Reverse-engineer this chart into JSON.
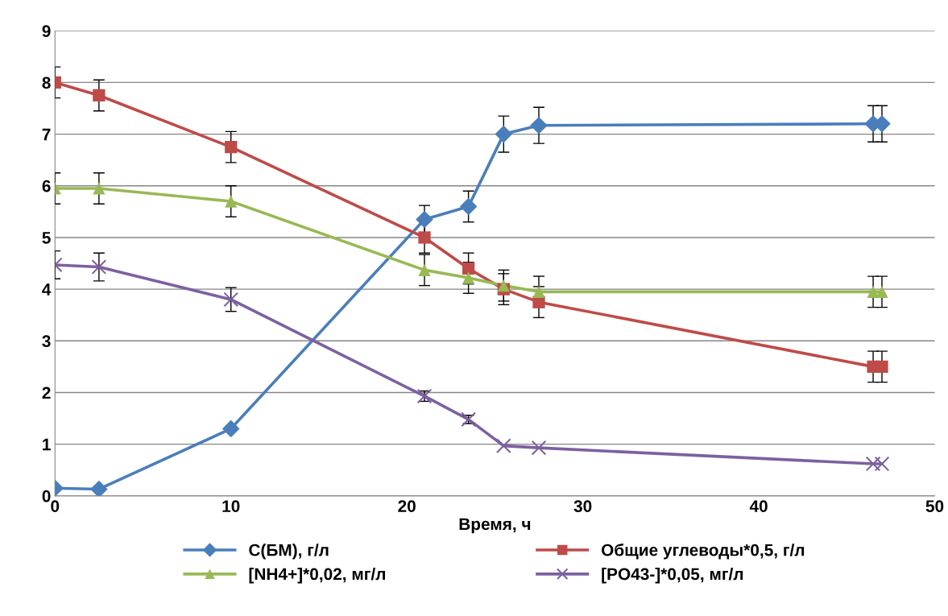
{
  "chart_data": {
    "type": "line",
    "xlabel": "Время, ч",
    "xlim": [
      0,
      50
    ],
    "xticks": [
      0,
      10,
      20,
      30,
      40,
      50
    ],
    "ylim": [
      0,
      9
    ],
    "yticks": [
      0,
      1,
      2,
      3,
      4,
      5,
      6,
      7,
      8,
      9
    ],
    "grid": "y",
    "legend": "bottom",
    "line_style": "solid",
    "x": [
      0,
      2.5,
      10,
      21,
      23.5,
      25.5,
      27.5,
      46.5,
      47
    ],
    "series": [
      {
        "name": "С(БМ), г/л",
        "color": "#4a7ebb",
        "marker": "diamond",
        "values": [
          0.15,
          0.13,
          1.3,
          5.35,
          5.6,
          7.0,
          7.17,
          7.2,
          7.2
        ],
        "errors": [
          null,
          null,
          null,
          0.27,
          0.3,
          0.35,
          0.35,
          0.35,
          0.35
        ]
      },
      {
        "name": "Общие углеводы*0,5, г/л",
        "color": "#be4b48",
        "marker": "square",
        "values": [
          8.0,
          7.75,
          6.75,
          5.0,
          4.4,
          4.0,
          3.75,
          2.5,
          2.5
        ],
        "errors": [
          0.3,
          0.3,
          0.3,
          0.3,
          0.3,
          0.3,
          0.3,
          0.3,
          0.3
        ]
      },
      {
        "name": "[NH4+]*0,02, мг/л",
        "color": "#98b954",
        "marker": "triangle",
        "values": [
          5.95,
          5.95,
          5.7,
          4.37,
          4.22,
          4.07,
          3.95,
          3.95,
          3.95
        ],
        "errors": [
          0.3,
          0.3,
          0.3,
          0.3,
          0.3,
          0.3,
          0.3,
          0.3,
          0.3
        ]
      },
      {
        "name": "[PO43-]*0,05, мг/л",
        "color": "#7d60a0",
        "marker": "cross",
        "values": [
          4.47,
          4.43,
          3.8,
          1.93,
          1.48,
          0.97,
          0.93,
          0.62,
          0.62
        ],
        "errors": [
          0.27,
          0.27,
          0.23,
          0.1,
          0.08,
          null,
          null,
          null,
          null
        ]
      }
    ]
  }
}
